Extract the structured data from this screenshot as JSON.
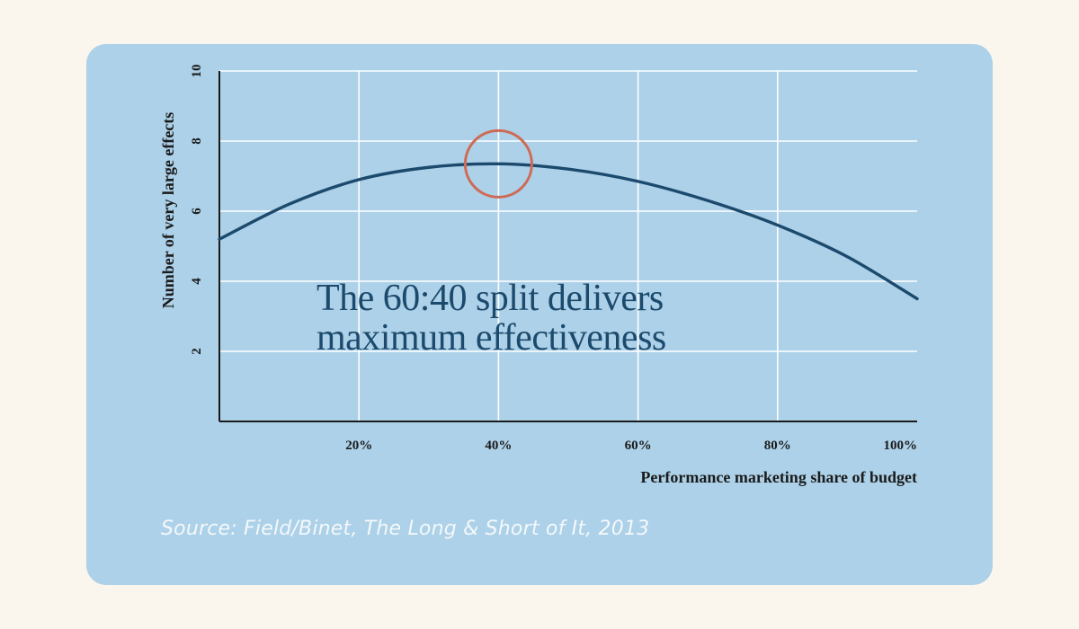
{
  "chart_data": {
    "type": "line",
    "title": "",
    "xlabel": "Performance marketing  share of budget",
    "ylabel": "Number of very large effects",
    "xlim": [
      0,
      100
    ],
    "ylim": [
      0,
      10
    ],
    "x_ticks": [
      20,
      40,
      60,
      80,
      100
    ],
    "x_tick_labels": [
      "20%",
      "40%",
      "60%",
      "80%",
      "100%"
    ],
    "y_ticks": [
      2,
      4,
      6,
      8,
      10
    ],
    "y_tick_labels": [
      "2",
      "4",
      "6",
      "8",
      "10"
    ],
    "grid": true,
    "series": [
      {
        "name": "Number of very large effects",
        "color": "#1c4a6d",
        "x": [
          0,
          10,
          20,
          30,
          40,
          50,
          60,
          70,
          80,
          90,
          100
        ],
        "y": [
          5.2,
          6.2,
          6.9,
          7.25,
          7.35,
          7.2,
          6.85,
          6.3,
          5.6,
          4.7,
          3.5
        ]
      }
    ],
    "highlight": {
      "x": 40,
      "y": 7.35,
      "color": "#cf6a55"
    },
    "annotation": {
      "lines": [
        "The 60:40 split delivers",
        "maximum effectiveness"
      ],
      "color": "#1c4a6d"
    }
  },
  "source": "Source: Field/Binet, The Long & Short of It, 2013",
  "colors": {
    "page_background": "#faf6ee",
    "card_background": "#acd1e8",
    "gridline": "#ffffff",
    "axis": "#1b1b1b"
  }
}
